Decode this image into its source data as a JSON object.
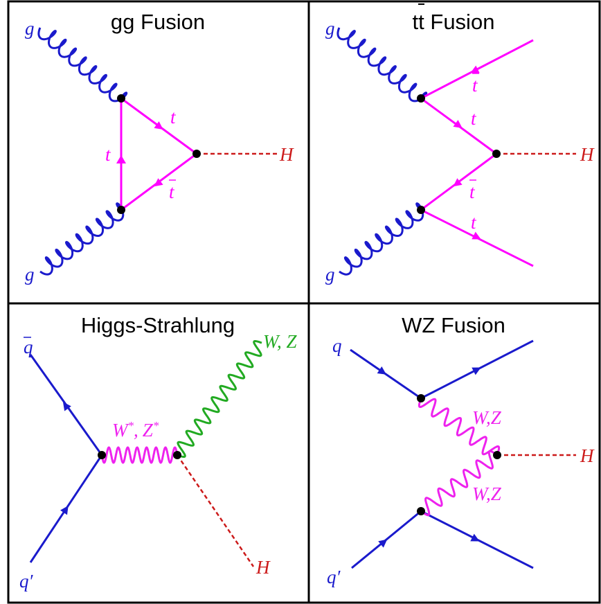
{
  "colors": {
    "gluon": "#1a1acc",
    "top": "#ff00ff",
    "higgs": "#cc1a1a",
    "quark": "#1a1acc",
    "vector_boson": "#22aa22",
    "virtual_boson": "#ee22ee",
    "vertex": "#000000",
    "border": "#000000"
  },
  "panels": [
    {
      "title": "gg Fusion",
      "labels": {
        "g_top": "g",
        "g_bottom": "g",
        "t_right": "t",
        "t_left": "t",
        "tbar": "t",
        "H": "H"
      }
    },
    {
      "title": "tt Fusion",
      "labels": {
        "g_top": "g",
        "g_bottom": "g",
        "tbar_top": "t",
        "t_upper": "t",
        "tbar_lower": "t",
        "t_bottom": "t",
        "H": "H"
      }
    },
    {
      "title": "Higgs-Strahlung",
      "labels": {
        "qbar": "q",
        "qprime": "q",
        "prime": "′",
        "W_star": "W",
        "Z_star": "Z",
        "star": "*",
        "comma": ",",
        "WZ": "W, Z",
        "H": "H"
      }
    },
    {
      "title": "WZ Fusion",
      "labels": {
        "q": "q",
        "qprime": "q",
        "prime": "′",
        "WZ_top": "W,Z",
        "WZ_bottom": "W,Z",
        "H": "H"
      }
    }
  ]
}
